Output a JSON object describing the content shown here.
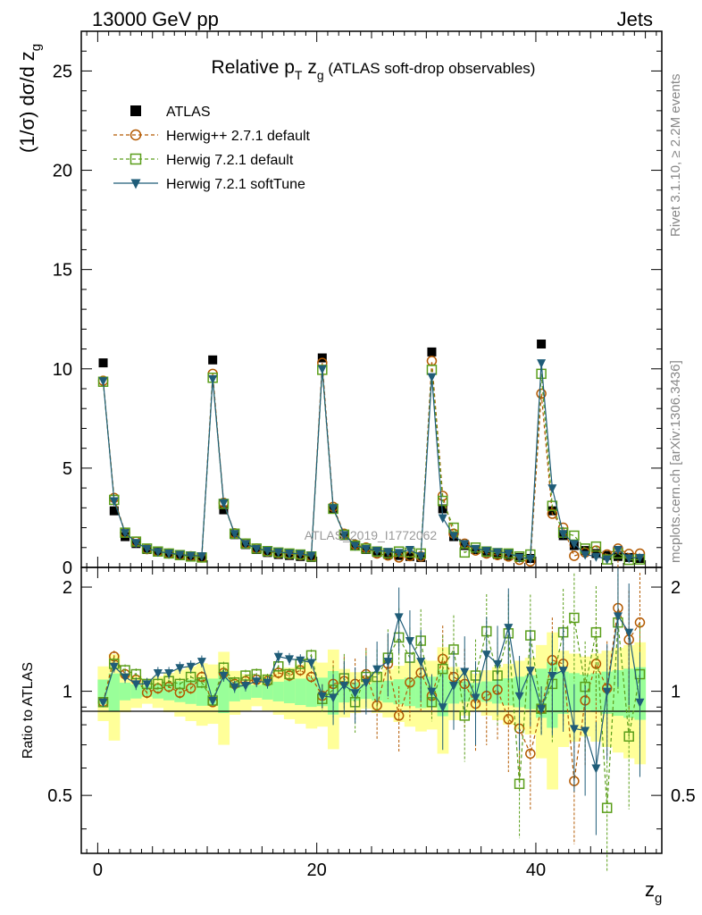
{
  "header": {
    "left": "13000 GeV pp",
    "right": "Jets"
  },
  "side_labels": {
    "rivet": "Rivet 3.1.10, ≥ 2.2M events",
    "mcplots": "mcplots.cern.ch [arXiv:1306.3436]"
  },
  "watermark": "ATLAS_2019_I1772062",
  "chart_data": {
    "type": "scatter",
    "title": "Relative p_T z_g (ATLAS soft-drop observables)",
    "title_parts": {
      "pre": "Relative p",
      "sub1": "T",
      "mid": " z",
      "sub2": "g",
      "post": " (ATLAS soft-drop observables)"
    },
    "xlabel": "z_g",
    "ylabel": "(1/σ) dσ/d z_g",
    "ratio_ylabel": "Ratio to ATLAS",
    "xlim": [
      -1.5,
      51.5
    ],
    "ylim": [
      0,
      27
    ],
    "ratio_ylim": [
      0.34,
      2.28
    ],
    "xticks": [
      0,
      20,
      40
    ],
    "yticks": [
      0,
      5,
      10,
      15,
      20,
      25
    ],
    "ratio_yticks": [
      0.5,
      1,
      2
    ],
    "x": [
      0.5,
      1.5,
      2.5,
      3.5,
      4.5,
      5.5,
      6.5,
      7.5,
      8.5,
      9.5,
      10.5,
      11.5,
      12.5,
      13.5,
      14.5,
      15.5,
      16.5,
      17.5,
      18.5,
      19.5,
      20.5,
      21.5,
      22.5,
      23.5,
      24.5,
      25.5,
      26.5,
      27.5,
      28.5,
      29.5,
      30.5,
      31.5,
      32.5,
      33.5,
      34.5,
      35.5,
      36.5,
      37.5,
      38.5,
      39.5,
      40.5,
      41.5,
      42.5,
      43.5,
      44.5,
      45.5,
      46.5,
      47.5,
      48.5,
      49.5
    ],
    "series": [
      {
        "name": "ATLAS",
        "marker": "square-filled",
        "color": "#000000",
        "values": [
          10.3,
          2.85,
          1.55,
          1.2,
          0.9,
          0.78,
          0.68,
          0.62,
          0.55,
          0.5,
          10.45,
          2.9,
          1.65,
          1.15,
          0.9,
          0.75,
          0.65,
          0.6,
          0.55,
          0.5,
          10.55,
          2.95,
          1.6,
          1.1,
          0.9,
          0.75,
          0.65,
          0.6,
          0.55,
          0.5,
          10.85,
          2.95,
          1.55,
          1.1,
          0.9,
          0.75,
          0.65,
          0.6,
          0.5,
          0.45,
          11.25,
          2.85,
          1.6,
          1.1,
          0.85,
          0.7,
          0.6,
          0.55,
          0.5,
          0.45
        ]
      },
      {
        "name": "Herwig++ 2.7.1 default",
        "marker": "circle-open",
        "color": "#b35900",
        "line": "dashed",
        "values": [
          9.4,
          3.5,
          1.75,
          1.3,
          0.92,
          0.8,
          0.7,
          0.62,
          0.56,
          0.5,
          9.75,
          3.25,
          1.72,
          1.2,
          0.95,
          0.8,
          0.72,
          0.67,
          0.62,
          0.55,
          10.3,
          3.05,
          1.7,
          1.15,
          1.0,
          0.7,
          0.6,
          0.5,
          0.57,
          0.55,
          10.4,
          3.6,
          1.7,
          1.2,
          0.85,
          0.7,
          0.62,
          0.55,
          0.38,
          0.3,
          8.75,
          2.7,
          2.0,
          0.58,
          0.75,
          0.85,
          0.65,
          0.95,
          0.68,
          0.7
        ],
        "ratio": [
          0.93,
          1.26,
          1.12,
          1.08,
          0.99,
          1.02,
          1.03,
          0.99,
          1.02,
          1.1,
          0.93,
          1.13,
          1.05,
          1.07,
          1.08,
          1.07,
          1.13,
          1.11,
          1.15,
          1.1,
          0.97,
          1.05,
          1.07,
          1.05,
          1.12,
          0.91,
          1.2,
          0.85,
          1.06,
          1.13,
          0.97,
          1.24,
          1.1,
          1.05,
          0.92,
          0.97,
          1.01,
          0.83,
          0.78,
          0.66,
          0.89,
          1.23,
          1.2,
          0.55,
          0.94,
          1.2,
          1.02,
          1.74,
          1.41,
          1.58
        ]
      },
      {
        "name": "Herwig 7.2.1 default",
        "marker": "square-open",
        "color": "#5a9e1a",
        "line": "dashed",
        "values": [
          9.35,
          3.4,
          1.75,
          1.3,
          0.95,
          0.8,
          0.7,
          0.62,
          0.55,
          0.5,
          9.55,
          3.2,
          1.7,
          1.2,
          0.95,
          0.82,
          0.75,
          0.7,
          0.65,
          0.55,
          9.95,
          2.95,
          1.65,
          1.1,
          0.95,
          0.8,
          0.72,
          0.8,
          0.75,
          0.7,
          9.95,
          3.35,
          2.0,
          0.75,
          1.0,
          0.8,
          0.72,
          0.7,
          0.55,
          0.65,
          9.75,
          3.1,
          1.75,
          1.6,
          0.95,
          1.05,
          0.4,
          0.7,
          0.38,
          0.4
        ],
        "ratio": [
          0.93,
          1.2,
          1.15,
          1.12,
          1.05,
          1.05,
          1.07,
          1.05,
          1.1,
          1.06,
          0.94,
          1.17,
          1.06,
          1.11,
          1.12,
          1.08,
          1.18,
          1.12,
          1.2,
          1.27,
          0.95,
          1.01,
          1.09,
          0.93,
          1.1,
          1.1,
          1.25,
          1.43,
          1.25,
          1.4,
          0.93,
          1.16,
          1.32,
          0.85,
          1.11,
          1.49,
          1.11,
          1.47,
          0.54,
          1.45,
          0.89,
          1.05,
          1.48,
          1.63,
          1.03,
          1.48,
          0.46,
          1.58,
          0.74,
          1.12
        ]
      },
      {
        "name": "Herwig 7.2.1 softTune",
        "marker": "triangle-down-filled",
        "color": "#1f5c78",
        "line": "solid",
        "values": [
          9.4,
          3.35,
          1.75,
          1.25,
          0.95,
          0.8,
          0.72,
          0.65,
          0.6,
          0.58,
          9.5,
          3.25,
          1.7,
          1.2,
          0.95,
          0.85,
          0.78,
          0.72,
          0.68,
          0.6,
          10.0,
          3.0,
          1.65,
          1.1,
          0.95,
          0.85,
          0.8,
          0.75,
          0.9,
          0.58,
          9.6,
          2.5,
          1.6,
          1.2,
          0.95,
          0.85,
          0.78,
          0.72,
          0.5,
          0.45,
          10.3,
          4.0,
          1.7,
          1.2,
          0.65,
          0.55,
          0.42,
          0.9,
          0.48,
          0.5
        ],
        "ratio": [
          0.93,
          1.18,
          1.1,
          1.05,
          1.05,
          1.13,
          1.13,
          1.17,
          1.18,
          1.22,
          0.94,
          1.11,
          1.03,
          1.04,
          1.07,
          1.06,
          1.26,
          1.24,
          1.23,
          1.21,
          0.97,
          0.96,
          1.04,
          0.99,
          1.06,
          1.16,
          1.22,
          1.64,
          1.4,
          1.22,
          1.0,
          0.9,
          1.04,
          1.14,
          0.96,
          1.28,
          1.2,
          1.53,
          0.97,
          1.15,
          0.89,
          1.11,
          1.15,
          0.78,
          0.77,
          0.6,
          1.0,
          1.65,
          1.48,
          0.93
        ]
      }
    ],
    "uncertainty_bands": [
      {
        "name": "stat",
        "color": "#99ff99"
      },
      {
        "name": "stat+syst",
        "color": "#ffff99"
      }
    ]
  }
}
